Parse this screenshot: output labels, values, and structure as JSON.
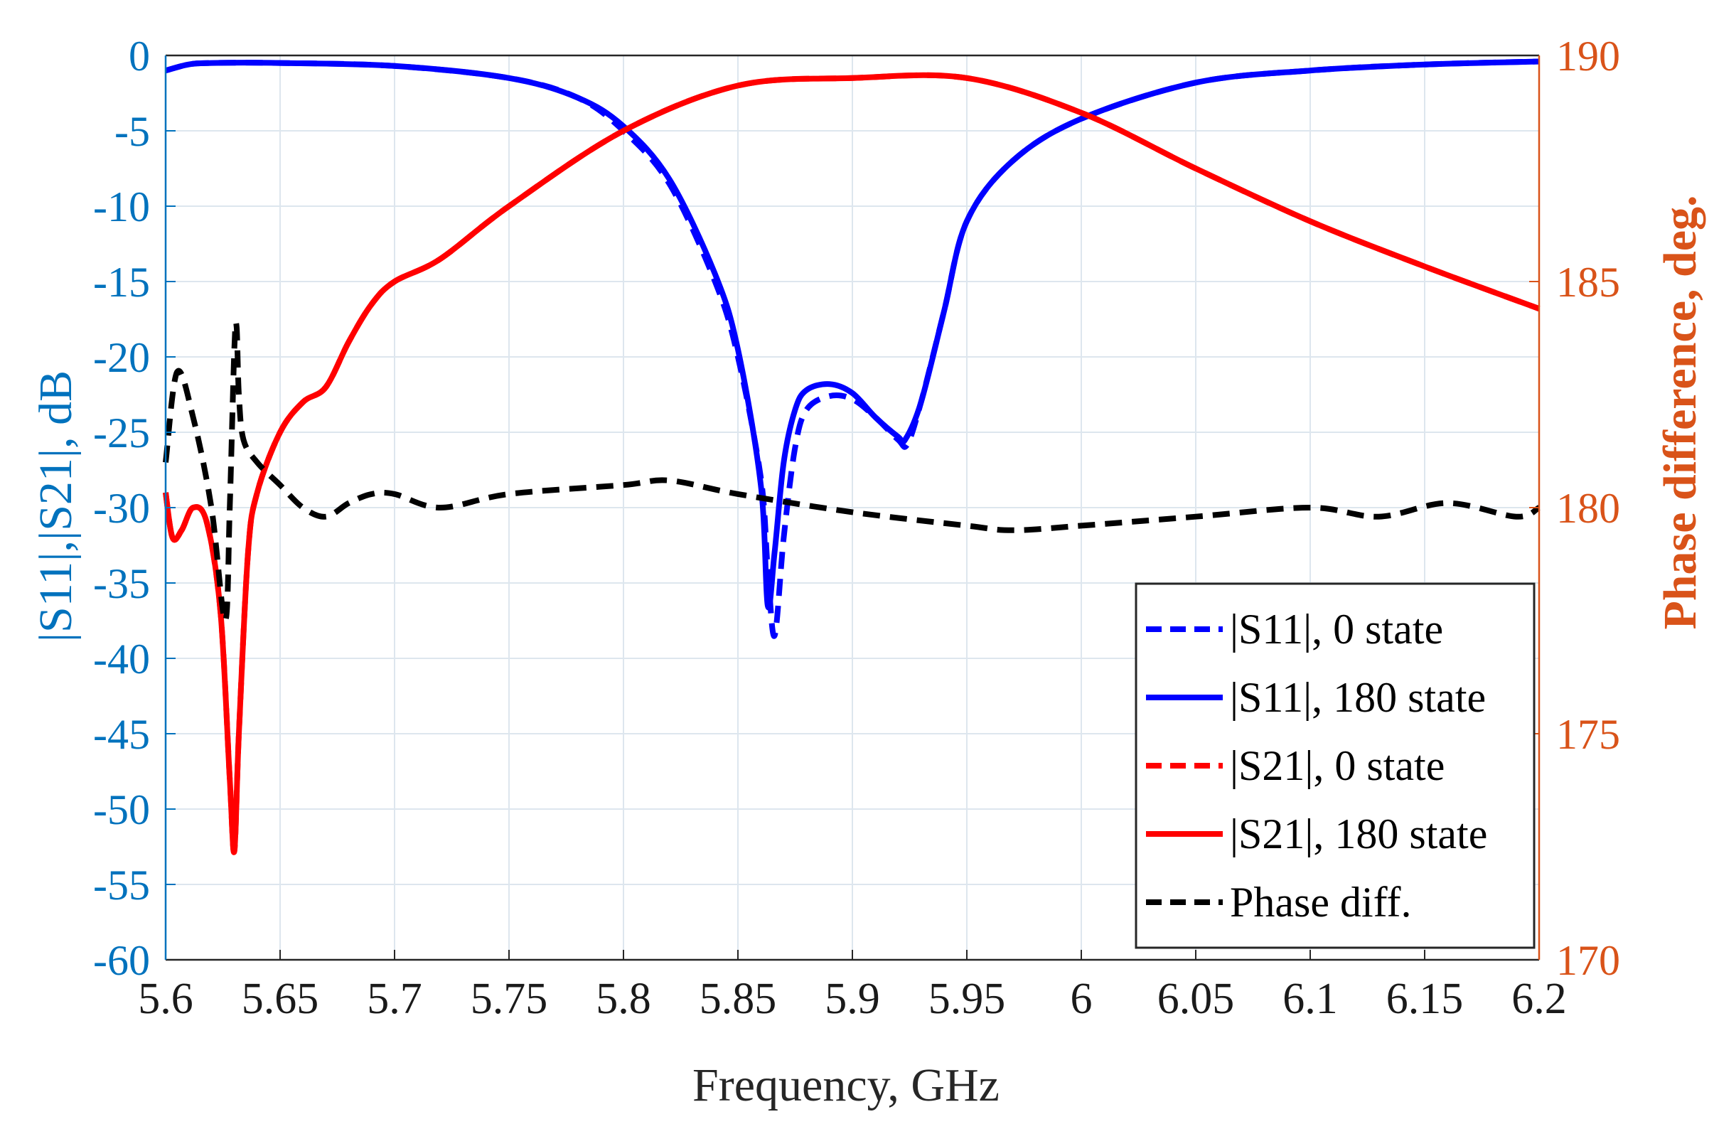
{
  "chart_data": {
    "type": "line",
    "title": "",
    "xlabel": "Frequency, GHz",
    "ylabel_left": "|S11|,|S21|, dB",
    "ylabel_right": "Phase difference, deg.",
    "xlim": [
      5.6,
      6.2
    ],
    "ylim_left": [
      -60,
      0
    ],
    "ylim_right": [
      170,
      190
    ],
    "x_ticks": [
      "5.6",
      "5.65",
      "5.7",
      "5.75",
      "5.8",
      "5.85",
      "5.9",
      "5.95",
      "6",
      "6.05",
      "6.1",
      "6.15",
      "6.2"
    ],
    "y_ticks_left": [
      "0",
      "-5",
      "-10",
      "-15",
      "-20",
      "-25",
      "-30",
      "-35",
      "-40",
      "-45",
      "-50",
      "-55",
      "-60"
    ],
    "y_ticks_right": [
      "190",
      "185",
      "180",
      "175",
      "170"
    ],
    "grid": true,
    "legend_position": "bottom-right",
    "colors": {
      "s11": "#0000ff",
      "s21": "#ff0000",
      "phase": "#000000",
      "left_axis": "#0072bd",
      "right_axis": "#d95319",
      "grid": "#dde6ee"
    },
    "series": [
      {
        "name": "|S11|, 0 state",
        "axis": "left",
        "color": "#0000ff",
        "dash": "dashed",
        "x": [
          5.6,
          5.61,
          5.62,
          5.65,
          5.7,
          5.75,
          5.78,
          5.8,
          5.82,
          5.84,
          5.85,
          5.86,
          5.863,
          5.866,
          5.87,
          5.875,
          5.88,
          5.89,
          5.9,
          5.91,
          5.92,
          5.924,
          5.93,
          5.94,
          5.95,
          5.97,
          6.0,
          6.05,
          6.1,
          6.15,
          6.2
        ],
        "y": [
          -1.0,
          -0.6,
          -0.5,
          -0.5,
          -0.7,
          -1.5,
          -2.8,
          -5.0,
          -8.5,
          -15.0,
          -20.0,
          -28.0,
          -34.0,
          -38.5,
          -32.0,
          -26.0,
          -23.5,
          -22.6,
          -22.8,
          -24.0,
          -25.5,
          -25.8,
          -23.0,
          -17.0,
          -11.0,
          -7.0,
          -4.2,
          -1.8,
          -1.0,
          -0.6,
          -0.4
        ]
      },
      {
        "name": "|S11|, 180 state",
        "axis": "left",
        "color": "#0000ff",
        "dash": "solid",
        "x": [
          5.6,
          5.61,
          5.62,
          5.65,
          5.7,
          5.75,
          5.78,
          5.8,
          5.82,
          5.84,
          5.85,
          5.86,
          5.863,
          5.866,
          5.87,
          5.875,
          5.88,
          5.89,
          5.9,
          5.91,
          5.92,
          5.923,
          5.93,
          5.94,
          5.95,
          5.97,
          6.0,
          6.05,
          6.1,
          6.15,
          6.2
        ],
        "y": [
          -1.0,
          -0.6,
          -0.5,
          -0.5,
          -0.7,
          -1.5,
          -2.8,
          -4.7,
          -8.2,
          -14.5,
          -19.5,
          -28.5,
          -36.5,
          -33.0,
          -27.0,
          -23.5,
          -22.2,
          -21.8,
          -22.4,
          -24.0,
          -25.3,
          -25.5,
          -23.0,
          -17.0,
          -11.0,
          -7.0,
          -4.2,
          -1.8,
          -1.0,
          -0.6,
          -0.4
        ]
      },
      {
        "name": "|S21|, 0 state",
        "axis": "left",
        "color": "#ff0000",
        "dash": "dashed",
        "x": [
          5.6,
          5.603,
          5.607,
          5.612,
          5.618,
          5.624,
          5.628,
          5.63,
          5.632,
          5.636,
          5.64,
          5.65,
          5.66,
          5.67,
          5.68,
          5.69,
          5.7,
          5.72,
          5.75,
          5.8,
          5.85,
          5.9,
          5.95,
          6.0,
          6.05,
          6.1,
          6.15,
          6.2
        ],
        "y": [
          -29.0,
          -32.0,
          -31.5,
          -30.0,
          -31.0,
          -37.0,
          -48.0,
          -52.8,
          -45.0,
          -33.0,
          -29.0,
          -25.0,
          -23.0,
          -22.0,
          -19.0,
          -16.5,
          -15.0,
          -13.5,
          -10.0,
          -5.0,
          -2.0,
          -1.5,
          -1.5,
          -3.8,
          -7.5,
          -11.0,
          -14.0,
          -16.8
        ]
      },
      {
        "name": "|S21|, 180 state",
        "axis": "left",
        "color": "#ff0000",
        "dash": "solid",
        "x": [
          5.6,
          5.603,
          5.607,
          5.612,
          5.618,
          5.624,
          5.628,
          5.63,
          5.632,
          5.636,
          5.64,
          5.65,
          5.66,
          5.67,
          5.68,
          5.69,
          5.7,
          5.72,
          5.75,
          5.8,
          5.85,
          5.9,
          5.95,
          6.0,
          6.05,
          6.1,
          6.15,
          6.2
        ],
        "y": [
          -29.0,
          -32.0,
          -31.5,
          -30.0,
          -31.0,
          -37.0,
          -48.0,
          -52.8,
          -45.0,
          -33.0,
          -29.0,
          -25.0,
          -23.0,
          -22.0,
          -19.0,
          -16.5,
          -15.0,
          -13.5,
          -10.0,
          -5.0,
          -2.0,
          -1.5,
          -1.5,
          -3.8,
          -7.5,
          -11.0,
          -14.0,
          -16.8
        ]
      },
      {
        "name": "Phase diff.",
        "axis": "right",
        "color": "#000000",
        "dash": "dashed",
        "x": [
          5.6,
          5.605,
          5.612,
          5.62,
          5.626,
          5.628,
          5.63,
          5.631,
          5.632,
          5.634,
          5.64,
          5.65,
          5.66,
          5.67,
          5.68,
          5.69,
          5.7,
          5.72,
          5.75,
          5.8,
          5.82,
          5.85,
          5.9,
          5.95,
          5.97,
          6.0,
          6.05,
          6.1,
          6.13,
          6.16,
          6.19,
          6.2
        ],
        "y": [
          181.0,
          183.0,
          182.0,
          180.0,
          177.5,
          180.0,
          183.5,
          184.0,
          182.5,
          181.5,
          181.0,
          180.5,
          180.0,
          179.8,
          180.1,
          180.3,
          180.3,
          180.0,
          180.3,
          180.5,
          180.6,
          180.3,
          179.9,
          179.6,
          179.5,
          179.6,
          179.8,
          180.0,
          179.8,
          180.1,
          179.8,
          180.0
        ]
      }
    ]
  },
  "legend": {
    "items": [
      {
        "label": "|S11|, 0 state",
        "color": "#0000ff",
        "dash": "dashed"
      },
      {
        "label": "|S11|, 180 state",
        "color": "#0000ff",
        "dash": "solid"
      },
      {
        "label": "|S21|, 0 state",
        "color": "#ff0000",
        "dash": "dashed"
      },
      {
        "label": "|S21|, 180 state",
        "color": "#ff0000",
        "dash": "solid"
      },
      {
        "label": "Phase diff.",
        "color": "#000000",
        "dash": "dashed"
      }
    ]
  }
}
